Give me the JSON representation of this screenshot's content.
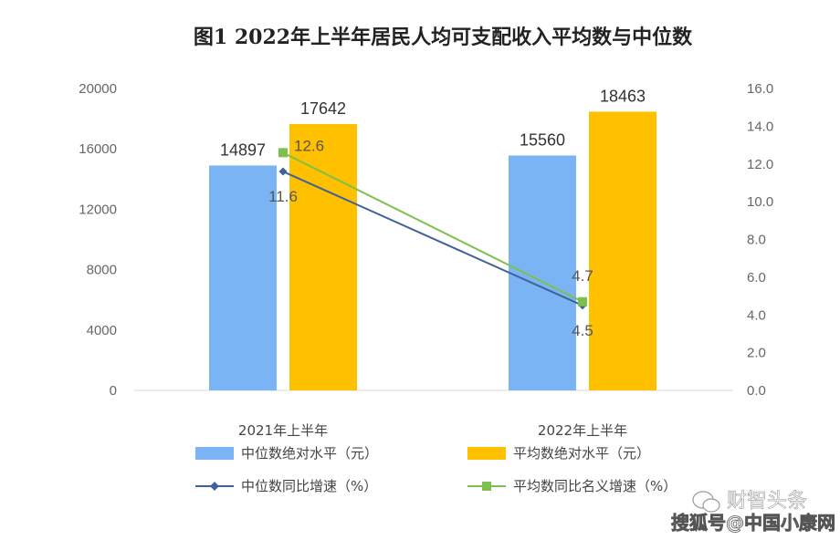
{
  "chart_data": {
    "type": "bar",
    "title": "图1   2022年上半年居民人均可支配收入平均数与中位数",
    "categories": [
      "2021年上半年",
      "2022年上半年"
    ],
    "series": [
      {
        "name": "中位数绝对水平（元）",
        "kind": "bar",
        "axis": "left",
        "color": "#7ab4f5",
        "values": [
          14897,
          15560
        ],
        "labels": [
          "14897",
          "15560"
        ]
      },
      {
        "name": "平均数绝对水平（元）",
        "kind": "bar",
        "axis": "left",
        "color": "#ffc000",
        "values": [
          17642,
          18463
        ],
        "labels": [
          "17642",
          "18463"
        ]
      },
      {
        "name": "中位数同比增速（%）",
        "kind": "line",
        "axis": "right",
        "color": "#41619a",
        "marker": "diamond",
        "values": [
          11.6,
          4.5
        ],
        "labels": [
          "11.6",
          "4.5"
        ]
      },
      {
        "name": "平均数同比名义增速（%）",
        "kind": "line",
        "axis": "right",
        "color": "#7fbf4d",
        "marker": "square",
        "values": [
          12.6,
          4.7
        ],
        "labels": [
          "12.6",
          "4.7"
        ]
      }
    ],
    "y_left": {
      "min": 0,
      "max": 20000,
      "ticks": [
        "0",
        "4000",
        "8000",
        "12000",
        "16000",
        "20000"
      ]
    },
    "y_right": {
      "min": 0,
      "max": 16,
      "ticks": [
        "0.0",
        "2.0",
        "4.0",
        "6.0",
        "8.0",
        "10.0",
        "12.0",
        "14.0",
        "16.0"
      ]
    },
    "grid": false,
    "legend_position": "bottom"
  },
  "watermark": {
    "primary": "财智头条",
    "secondary": "搜狐号@中国小康网"
  }
}
